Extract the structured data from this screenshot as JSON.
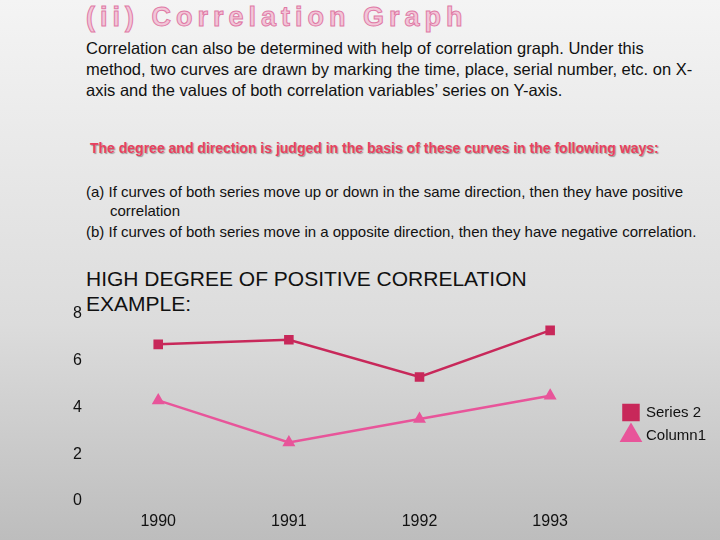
{
  "slide": {
    "title": "(ii) Correlation Graph",
    "intro": "Correlation can also be determined with help of correlation graph. Under this method, two curves are drawn by marking the time, place, serial number, etc. on X-axis and the values of both correlation variables’ series on Y-axis.",
    "subheading": "The degree and direction is judged in the basis of these curves in the following ways:",
    "points": [
      "(a) If curves of both series move up or down in the same direction, then they have positive correlation",
      "(b) If curves of both series move in a opposite direction, then they have negative correlation."
    ]
  },
  "chart_data": {
    "type": "line",
    "title": "HIGH DEGREE OF POSITIVE CORRELATION EXAMPLE:",
    "categories": [
      "1990",
      "1991",
      "1992",
      "1993"
    ],
    "series": [
      {
        "name": "Series 2",
        "color": "#c8285a",
        "marker": "square",
        "values": [
          6.7,
          6.9,
          5.3,
          7.3
        ]
      },
      {
        "name": "Column1",
        "color": "#e8559a",
        "marker": "triangle",
        "values": [
          4.3,
          2.5,
          3.5,
          4.5
        ]
      }
    ],
    "ylim": [
      0,
      8
    ],
    "yticks": [
      0,
      2,
      4,
      6,
      8
    ],
    "grid": false,
    "legend": "right"
  }
}
